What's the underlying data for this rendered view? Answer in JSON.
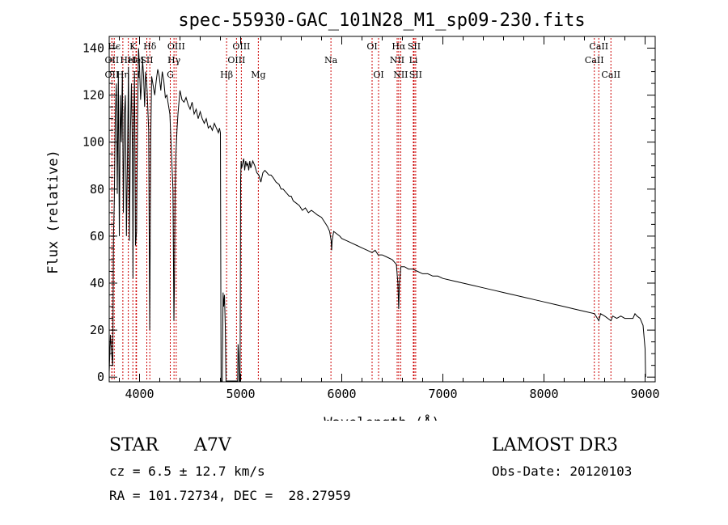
{
  "chart_data": {
    "type": "line",
    "title": "spec-55930-GAC_101N28_M1_sp09-230.fits",
    "xlabel": "Wavelength (Å)",
    "ylabel": "Flux (relative)",
    "xlim": [
      3700,
      9100
    ],
    "ylim": [
      -2,
      145
    ],
    "x_ticks": [
      4000,
      5000,
      6000,
      7000,
      8000,
      9000
    ],
    "y_ticks": [
      0,
      20,
      40,
      60,
      80,
      100,
      120,
      140
    ],
    "grid": false,
    "line_color": "#000000",
    "marker_color": "#cc0000",
    "series": [
      {
        "name": "flux",
        "points": [
          [
            3700,
            2
          ],
          [
            3712,
            18
          ],
          [
            3725,
            10
          ],
          [
            3735,
            5
          ],
          [
            3742,
            60
          ],
          [
            3750,
            75
          ],
          [
            3760,
            110
          ],
          [
            3770,
            125
          ],
          [
            3780,
            78
          ],
          [
            3790,
            130
          ],
          [
            3800,
            60
          ],
          [
            3810,
            120
          ],
          [
            3820,
            100
          ],
          [
            3830,
            130
          ],
          [
            3840,
            70
          ],
          [
            3850,
            112
          ],
          [
            3860,
            120
          ],
          [
            3870,
            60
          ],
          [
            3880,
            90
          ],
          [
            3890,
            132
          ],
          [
            3900,
            58
          ],
          [
            3910,
            105
          ],
          [
            3920,
            125
          ],
          [
            3930,
            95
          ],
          [
            3935,
            42
          ],
          [
            3940,
            100
          ],
          [
            3950,
            128
          ],
          [
            3960,
            56
          ],
          [
            3970,
            62
          ],
          [
            3980,
            108
          ],
          [
            3990,
            140
          ],
          [
            4000,
            132
          ],
          [
            4010,
            118
          ],
          [
            4020,
            125
          ],
          [
            4030,
            135
          ],
          [
            4040,
            128
          ],
          [
            4050,
            115
          ],
          [
            4060,
            130
          ],
          [
            4075,
            122
          ],
          [
            4090,
            105
          ],
          [
            4101,
            20
          ],
          [
            4110,
            100
          ],
          [
            4120,
            128
          ],
          [
            4135,
            124
          ],
          [
            4150,
            120
          ],
          [
            4165,
            126
          ],
          [
            4180,
            131
          ],
          [
            4195,
            128
          ],
          [
            4210,
            122
          ],
          [
            4225,
            130
          ],
          [
            4240,
            126
          ],
          [
            4255,
            119
          ],
          [
            4270,
            120
          ],
          [
            4285,
            116
          ],
          [
            4300,
            112
          ],
          [
            4315,
            96
          ],
          [
            4330,
            80
          ],
          [
            4340,
            24
          ],
          [
            4345,
            38
          ],
          [
            4352,
            80
          ],
          [
            4360,
            95
          ],
          [
            4370,
            105
          ],
          [
            4380,
            112
          ],
          [
            4400,
            122
          ],
          [
            4420,
            118
          ],
          [
            4440,
            117
          ],
          [
            4460,
            119
          ],
          [
            4480,
            116
          ],
          [
            4500,
            114
          ],
          [
            4520,
            117
          ],
          [
            4540,
            112
          ],
          [
            4560,
            114
          ],
          [
            4580,
            110
          ],
          [
            4600,
            113
          ],
          [
            4620,
            110
          ],
          [
            4640,
            108
          ],
          [
            4660,
            110
          ],
          [
            4680,
            106
          ],
          [
            4700,
            107
          ],
          [
            4720,
            105
          ],
          [
            4740,
            108
          ],
          [
            4760,
            106
          ],
          [
            4780,
            104
          ],
          [
            4790,
            106
          ],
          [
            4800,
            104
          ],
          [
            4806,
            -2
          ],
          [
            4818,
            -2
          ],
          [
            4826,
            36
          ],
          [
            4832,
            30
          ],
          [
            4840,
            35
          ],
          [
            4848,
            22
          ],
          [
            4855,
            -2
          ],
          [
            4970,
            -2
          ],
          [
            4974,
            14
          ],
          [
            4980,
            10
          ],
          [
            4986,
            -2
          ],
          [
            4994,
            -2
          ],
          [
            5000,
            84
          ],
          [
            5005,
            92
          ],
          [
            5010,
            89
          ],
          [
            5020,
            91
          ],
          [
            5030,
            93
          ],
          [
            5040,
            88
          ],
          [
            5050,
            92
          ],
          [
            5060,
            90
          ],
          [
            5070,
            91
          ],
          [
            5080,
            88
          ],
          [
            5090,
            92
          ],
          [
            5100,
            89
          ],
          [
            5120,
            92
          ],
          [
            5140,
            90
          ],
          [
            5160,
            87
          ],
          [
            5180,
            86
          ],
          [
            5200,
            83
          ],
          [
            5220,
            87
          ],
          [
            5240,
            88
          ],
          [
            5260,
            87
          ],
          [
            5280,
            86
          ],
          [
            5300,
            86
          ],
          [
            5320,
            85
          ],
          [
            5350,
            83
          ],
          [
            5380,
            82
          ],
          [
            5400,
            80
          ],
          [
            5420,
            80
          ],
          [
            5440,
            79
          ],
          [
            5460,
            78
          ],
          [
            5480,
            77
          ],
          [
            5500,
            77
          ],
          [
            5520,
            75
          ],
          [
            5550,
            74
          ],
          [
            5580,
            73
          ],
          [
            5610,
            71
          ],
          [
            5640,
            72
          ],
          [
            5670,
            70
          ],
          [
            5700,
            71
          ],
          [
            5730,
            70
          ],
          [
            5760,
            69
          ],
          [
            5800,
            68
          ],
          [
            5830,
            66
          ],
          [
            5860,
            64
          ],
          [
            5880,
            62
          ],
          [
            5895,
            58
          ],
          [
            5900,
            54
          ],
          [
            5905,
            58
          ],
          [
            5920,
            62
          ],
          [
            5950,
            61
          ],
          [
            5980,
            60
          ],
          [
            6000,
            59
          ],
          [
            6050,
            58
          ],
          [
            6100,
            57
          ],
          [
            6150,
            56
          ],
          [
            6200,
            55
          ],
          [
            6250,
            54
          ],
          [
            6300,
            53
          ],
          [
            6330,
            54
          ],
          [
            6360,
            52
          ],
          [
            6400,
            52
          ],
          [
            6450,
            51
          ],
          [
            6500,
            50
          ],
          [
            6540,
            48
          ],
          [
            6555,
            40
          ],
          [
            6563,
            29
          ],
          [
            6570,
            40
          ],
          [
            6585,
            47
          ],
          [
            6620,
            47
          ],
          [
            6660,
            46
          ],
          [
            6700,
            46
          ],
          [
            6750,
            45
          ],
          [
            6800,
            44
          ],
          [
            6850,
            44
          ],
          [
            6900,
            43
          ],
          [
            6950,
            43
          ],
          [
            7000,
            42
          ],
          [
            7100,
            41
          ],
          [
            7200,
            40
          ],
          [
            7300,
            39
          ],
          [
            7400,
            38
          ],
          [
            7500,
            37
          ],
          [
            7600,
            36
          ],
          [
            7700,
            35
          ],
          [
            7800,
            34
          ],
          [
            7900,
            33
          ],
          [
            8000,
            32
          ],
          [
            8100,
            31
          ],
          [
            8200,
            30
          ],
          [
            8300,
            29
          ],
          [
            8400,
            28
          ],
          [
            8500,
            27
          ],
          [
            8542,
            24
          ],
          [
            8560,
            27
          ],
          [
            8600,
            26
          ],
          [
            8662,
            24
          ],
          [
            8680,
            26
          ],
          [
            8720,
            25
          ],
          [
            8760,
            26
          ],
          [
            8800,
            25
          ],
          [
            8840,
            25
          ],
          [
            8880,
            25
          ],
          [
            8900,
            27
          ],
          [
            8920,
            26
          ],
          [
            8950,
            25
          ],
          [
            8980,
            22
          ],
          [
            9000,
            12
          ],
          [
            9005,
            0
          ]
        ]
      }
    ],
    "lines": [
      {
        "label": "Hϵ",
        "x": 3750,
        "row": 1
      },
      {
        "label": "OII",
        "x": 3727,
        "row": 2
      },
      {
        "label": "OII",
        "x": 3727,
        "row": 3
      },
      {
        "label": "Hη",
        "x": 3835,
        "row": 3
      },
      {
        "label": "HeI",
        "x": 3889,
        "row": 2
      },
      {
        "label": "K",
        "x": 3934,
        "row": 1
      },
      {
        "label": "HeI",
        "x": 3965,
        "row": 2
      },
      {
        "label": "H",
        "x": 3970,
        "row": 3
      },
      {
        "label": "Hδ",
        "x": 4102,
        "row": 1
      },
      {
        "label": "SII",
        "x": 4072,
        "row": 2
      },
      {
        "label": "OIII",
        "x": 4363,
        "row": 1
      },
      {
        "label": "Hγ",
        "x": 4341,
        "row": 2
      },
      {
        "label": "G",
        "x": 4304,
        "row": 3
      },
      {
        "label": "Hβ",
        "x": 4861,
        "row": 3
      },
      {
        "label": "OIII",
        "x": 5007,
        "row": 1
      },
      {
        "label": "OIII",
        "x": 4959,
        "row": 2
      },
      {
        "label": "Mg",
        "x": 5175,
        "row": 3
      },
      {
        "label": "Na",
        "x": 5893,
        "row": 2
      },
      {
        "label": "OI",
        "x": 6300,
        "row": 1
      },
      {
        "label": "OI",
        "x": 6364,
        "row": 3
      },
      {
        "label": "Hα",
        "x": 6563,
        "row": 1
      },
      {
        "label": "SII",
        "x": 6716,
        "row": 1
      },
      {
        "label": "NII",
        "x": 6548,
        "row": 2
      },
      {
        "label": "Li",
        "x": 6708,
        "row": 2
      },
      {
        "label": "NII",
        "x": 6583,
        "row": 3
      },
      {
        "label": "SII",
        "x": 6731,
        "row": 3
      },
      {
        "label": "CaII",
        "x": 8542,
        "row": 1
      },
      {
        "label": "CaII",
        "x": 8498,
        "row": 2
      },
      {
        "label": "CaII",
        "x": 8662,
        "row": 3
      }
    ]
  },
  "info": {
    "class": "STAR",
    "subclass": "A7V",
    "survey": "LAMOST DR3",
    "cz": "cz = 6.5 ± 12.7 km/s",
    "obs_date": "Obs-Date: 20120103",
    "radec": "RA = 101.72734, DEC =  28.27959"
  }
}
